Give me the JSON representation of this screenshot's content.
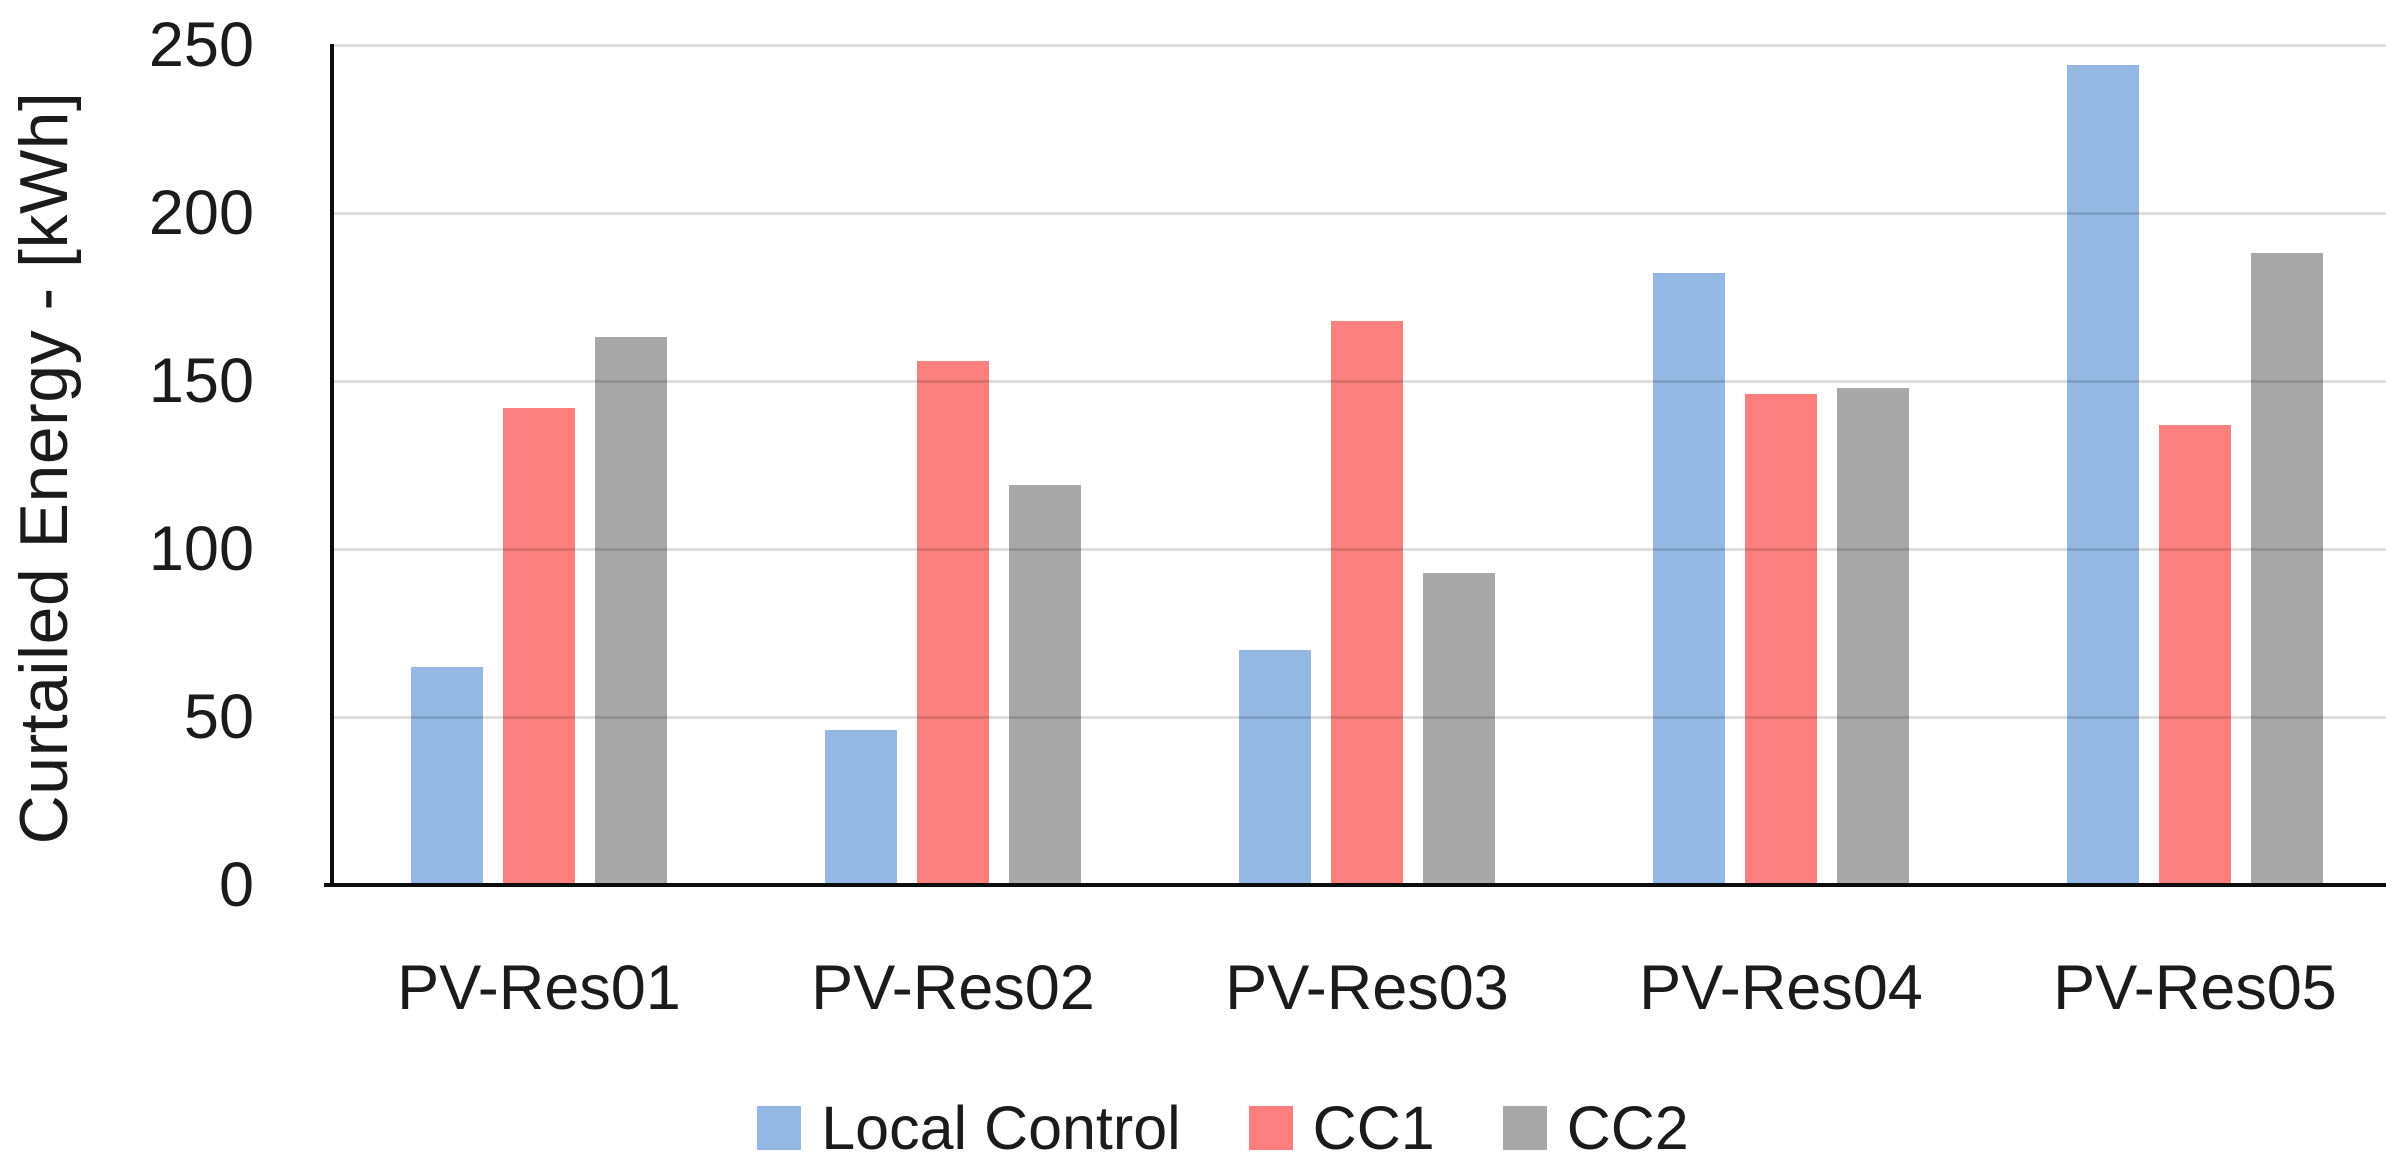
{
  "chart_data": {
    "type": "bar",
    "title": "",
    "categories": [
      "PV-Res01",
      "PV-Res02",
      "PV-Res03",
      "PV-Res04",
      "PV-Res05"
    ],
    "series": [
      {
        "name": "Local Control",
        "color": "#95B7E3",
        "values": [
          65,
          46,
          70,
          182,
          244
        ]
      },
      {
        "name": "CC1",
        "color": "#FB7F7F",
        "values": [
          142,
          156,
          168,
          146,
          137
        ]
      },
      {
        "name": "CC2",
        "color": "#A8A8A8",
        "values": [
          163,
          119,
          93,
          148,
          188
        ]
      }
    ],
    "xlabel": "",
    "ylabel": "Curtailed Energy - [kWh]",
    "ylim": [
      0,
      250
    ],
    "yticks": [
      0,
      50,
      100,
      150,
      200,
      250
    ],
    "grid": true,
    "legend_position": "bottom",
    "unit": "kWh"
  },
  "colors": {
    "axis_line": "#0d0d0d",
    "text": "#1b1b1b",
    "gridline": "rgba(0,0,0,0.13)",
    "background": "#ffffff"
  }
}
